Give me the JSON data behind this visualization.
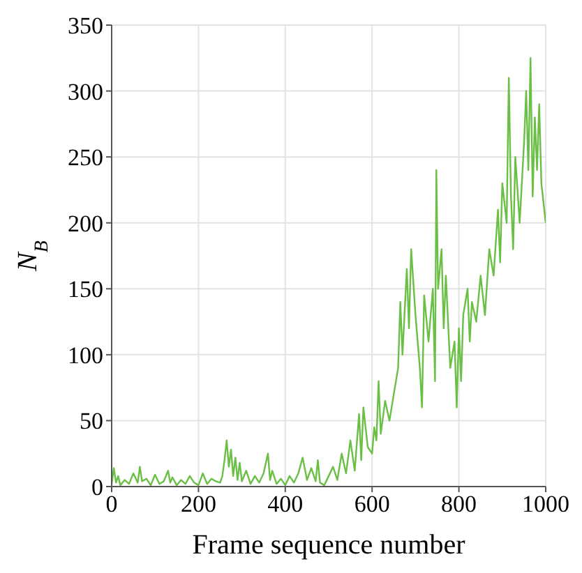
{
  "chart_data": {
    "type": "line",
    "xlabel": "Frame sequence number",
    "ylabel": "N$_{B}$",
    "xlim": [
      0,
      1000
    ],
    "ylim": [
      0,
      350
    ],
    "xticks": [
      0,
      200,
      400,
      600,
      800,
      1000
    ],
    "yticks": [
      0,
      50,
      100,
      150,
      200,
      250,
      300,
      350
    ],
    "grid": true,
    "marker": "none",
    "line_style": "solid",
    "x": [
      0,
      5,
      10,
      15,
      20,
      30,
      40,
      50,
      60,
      65,
      70,
      80,
      90,
      100,
      110,
      120,
      130,
      135,
      140,
      150,
      160,
      170,
      180,
      190,
      200,
      210,
      220,
      230,
      240,
      250,
      255,
      260,
      265,
      270,
      275,
      280,
      285,
      290,
      295,
      300,
      310,
      320,
      330,
      340,
      350,
      360,
      365,
      370,
      380,
      390,
      400,
      410,
      420,
      430,
      440,
      450,
      460,
      470,
      475,
      480,
      490,
      500,
      510,
      520,
      530,
      540,
      550,
      560,
      570,
      575,
      580,
      590,
      600,
      605,
      610,
      615,
      620,
      630,
      640,
      650,
      660,
      665,
      670,
      680,
      685,
      690,
      700,
      710,
      715,
      720,
      730,
      740,
      745,
      748,
      752,
      760,
      765,
      770,
      780,
      790,
      795,
      800,
      805,
      810,
      820,
      825,
      830,
      840,
      850,
      860,
      870,
      880,
      890,
      895,
      900,
      910,
      915,
      920,
      925,
      930,
      940,
      950,
      955,
      960,
      965,
      970,
      975,
      980,
      985,
      990,
      995,
      1000
    ],
    "series": [
      {
        "color": "#6abf45",
        "values": [
          2,
          14,
          3,
          8,
          1,
          5,
          2,
          10,
          3,
          15,
          4,
          6,
          1,
          9,
          2,
          4,
          12,
          3,
          7,
          1,
          5,
          2,
          8,
          3,
          1,
          10,
          2,
          6,
          4,
          3,
          8,
          20,
          35,
          15,
          28,
          8,
          22,
          5,
          18,
          4,
          12,
          2,
          8,
          3,
          10,
          25,
          5,
          12,
          2,
          6,
          1,
          8,
          3,
          10,
          22,
          5,
          14,
          4,
          20,
          3,
          1,
          8,
          15,
          5,
          25,
          10,
          35,
          12,
          55,
          20,
          60,
          30,
          25,
          45,
          35,
          80,
          40,
          65,
          50,
          70,
          90,
          140,
          100,
          165,
          120,
          180,
          130,
          90,
          60,
          145,
          110,
          150,
          80,
          240,
          150,
          180,
          120,
          160,
          90,
          110,
          60,
          120,
          80,
          130,
          150,
          110,
          140,
          125,
          160,
          130,
          180,
          160,
          210,
          170,
          230,
          200,
          310,
          220,
          180,
          250,
          200,
          260,
          300,
          240,
          325,
          220,
          280,
          240,
          290,
          230,
          215,
          200
        ]
      }
    ]
  }
}
